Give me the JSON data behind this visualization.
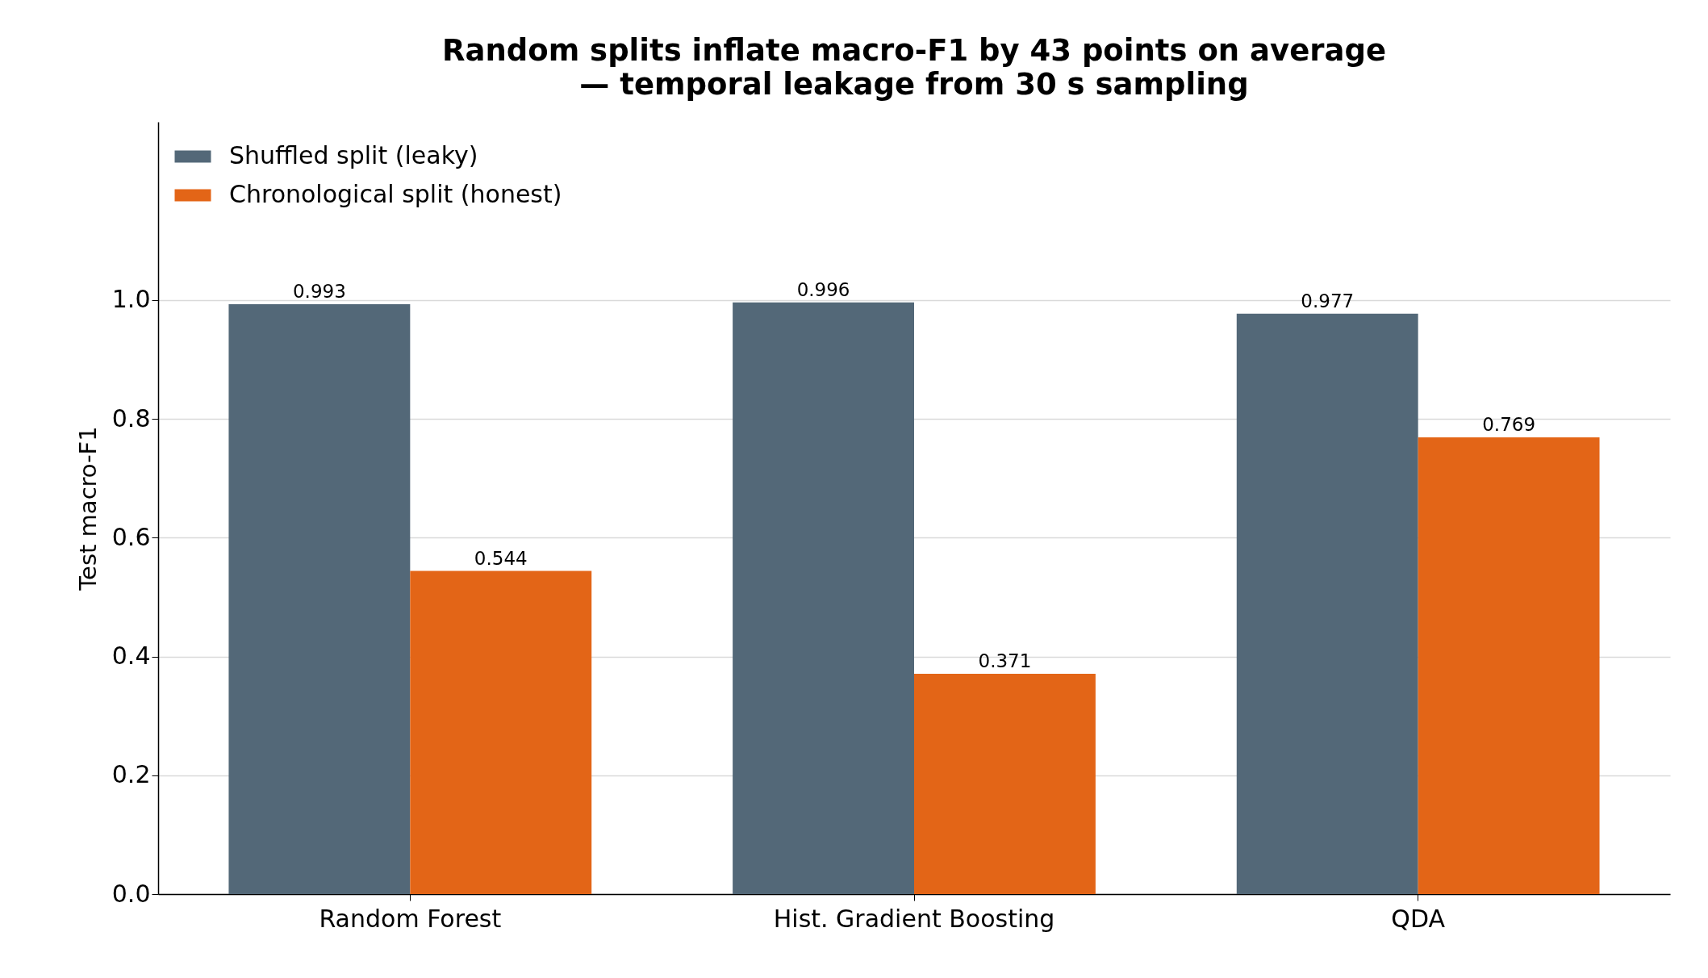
{
  "chart_data": {
    "type": "bar",
    "title": "Random splits inflate macro-F1 by 43 points on average\n— temporal leakage from 30 s sampling",
    "ylabel": "Test macro-F1",
    "categories": [
      "Random Forest",
      "Hist. Gradient Boosting",
      "QDA"
    ],
    "series": [
      {
        "name": "Shuffled split (leaky)",
        "color": "#536878",
        "values": [
          0.993,
          0.996,
          0.977
        ]
      },
      {
        "name": "Chronological split (honest)",
        "color": "#e36517",
        "values": [
          0.544,
          0.371,
          0.769
        ]
      }
    ],
    "ylim": [
      0,
      1.3
    ],
    "yticks": [
      {
        "value": 0,
        "label": "0.0"
      },
      {
        "value": 0.2,
        "label": "0.2"
      },
      {
        "value": 0.4,
        "label": "0.4"
      },
      {
        "value": 0.6,
        "label": "0.6"
      },
      {
        "value": 0.8,
        "label": "0.8"
      },
      {
        "value": 1,
        "label": "1.0"
      }
    ],
    "grid": "y",
    "legend": "top left",
    "data_labels": true
  }
}
